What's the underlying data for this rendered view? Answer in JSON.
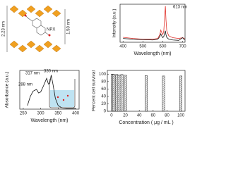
{
  "diagram": {
    "labels": [
      "2.23 nm",
      "1.50 nm",
      "NPX"
    ]
  },
  "chart_data": [
    {
      "type": "line",
      "xlabel": "Wavelength (nm)",
      "ylabel": "Intensity (a.u.)",
      "x": [
        400,
        450,
        500,
        550,
        575,
        585,
        590,
        595,
        600,
        605,
        610,
        613,
        616,
        620,
        630,
        650,
        680,
        700,
        710
      ],
      "series": [
        {
          "color": "#e0302a",
          "values": [
            0.13,
            0.1,
            0.08,
            0.08,
            0.1,
            0.2,
            0.32,
            0.25,
            0.2,
            0.3,
            0.7,
            0.95,
            0.6,
            0.3,
            0.17,
            0.12,
            0.1,
            0.12,
            0.1
          ]
        },
        {
          "color": "#111111",
          "values": [
            0.1,
            0.08,
            0.07,
            0.06,
            0.08,
            0.15,
            0.22,
            0.16,
            0.12,
            0.15,
            0.25,
            0.3,
            0.2,
            0.13,
            0.08,
            0.06,
            0.05,
            0.12,
            0.06
          ]
        }
      ],
      "xlim": [
        385,
        712
      ],
      "ylim": [
        0,
        1
      ],
      "xticks": [
        400,
        500,
        600,
        700
      ],
      "annotations": [
        "613 nm"
      ]
    },
    {
      "type": "line",
      "xlabel": "Wavelength (nm)",
      "ylabel": "Absorbance (a.u.)",
      "x": [
        262,
        270,
        278,
        284,
        288,
        294,
        300,
        308,
        317,
        322,
        326,
        330,
        335,
        342,
        350,
        360,
        375,
        400
      ],
      "series": [
        {
          "color": "#111111",
          "values": [
            0.1,
            0.35,
            0.5,
            0.53,
            0.55,
            0.45,
            0.48,
            0.65,
            0.86,
            0.7,
            0.72,
            0.95,
            0.7,
            0.3,
            0.1,
            0.04,
            0.02,
            0.02
          ]
        }
      ],
      "xlim": [
        240,
        410
      ],
      "ylim": [
        0,
        1.08
      ],
      "xticks": [
        250,
        300,
        350,
        400
      ],
      "annotations": [
        "288 nm",
        "317 nm",
        "330 nm"
      ]
    },
    {
      "type": "bar",
      "xlabel": "Concentration ( μg / mL )",
      "ylabel": "Percent cell survival",
      "x": [
        1,
        3,
        5,
        7.5,
        10,
        12.5,
        15,
        20,
        50,
        75,
        100
      ],
      "values": [
        100,
        99,
        98,
        99,
        97,
        98,
        99,
        97,
        96,
        95,
        95
      ],
      "xlim": [
        -6,
        106
      ],
      "ylim": [
        0,
        110
      ],
      "xticks": [
        0,
        20,
        40,
        60,
        80,
        100
      ],
      "yticks": [
        0,
        20,
        40,
        60,
        80,
        100
      ]
    }
  ]
}
